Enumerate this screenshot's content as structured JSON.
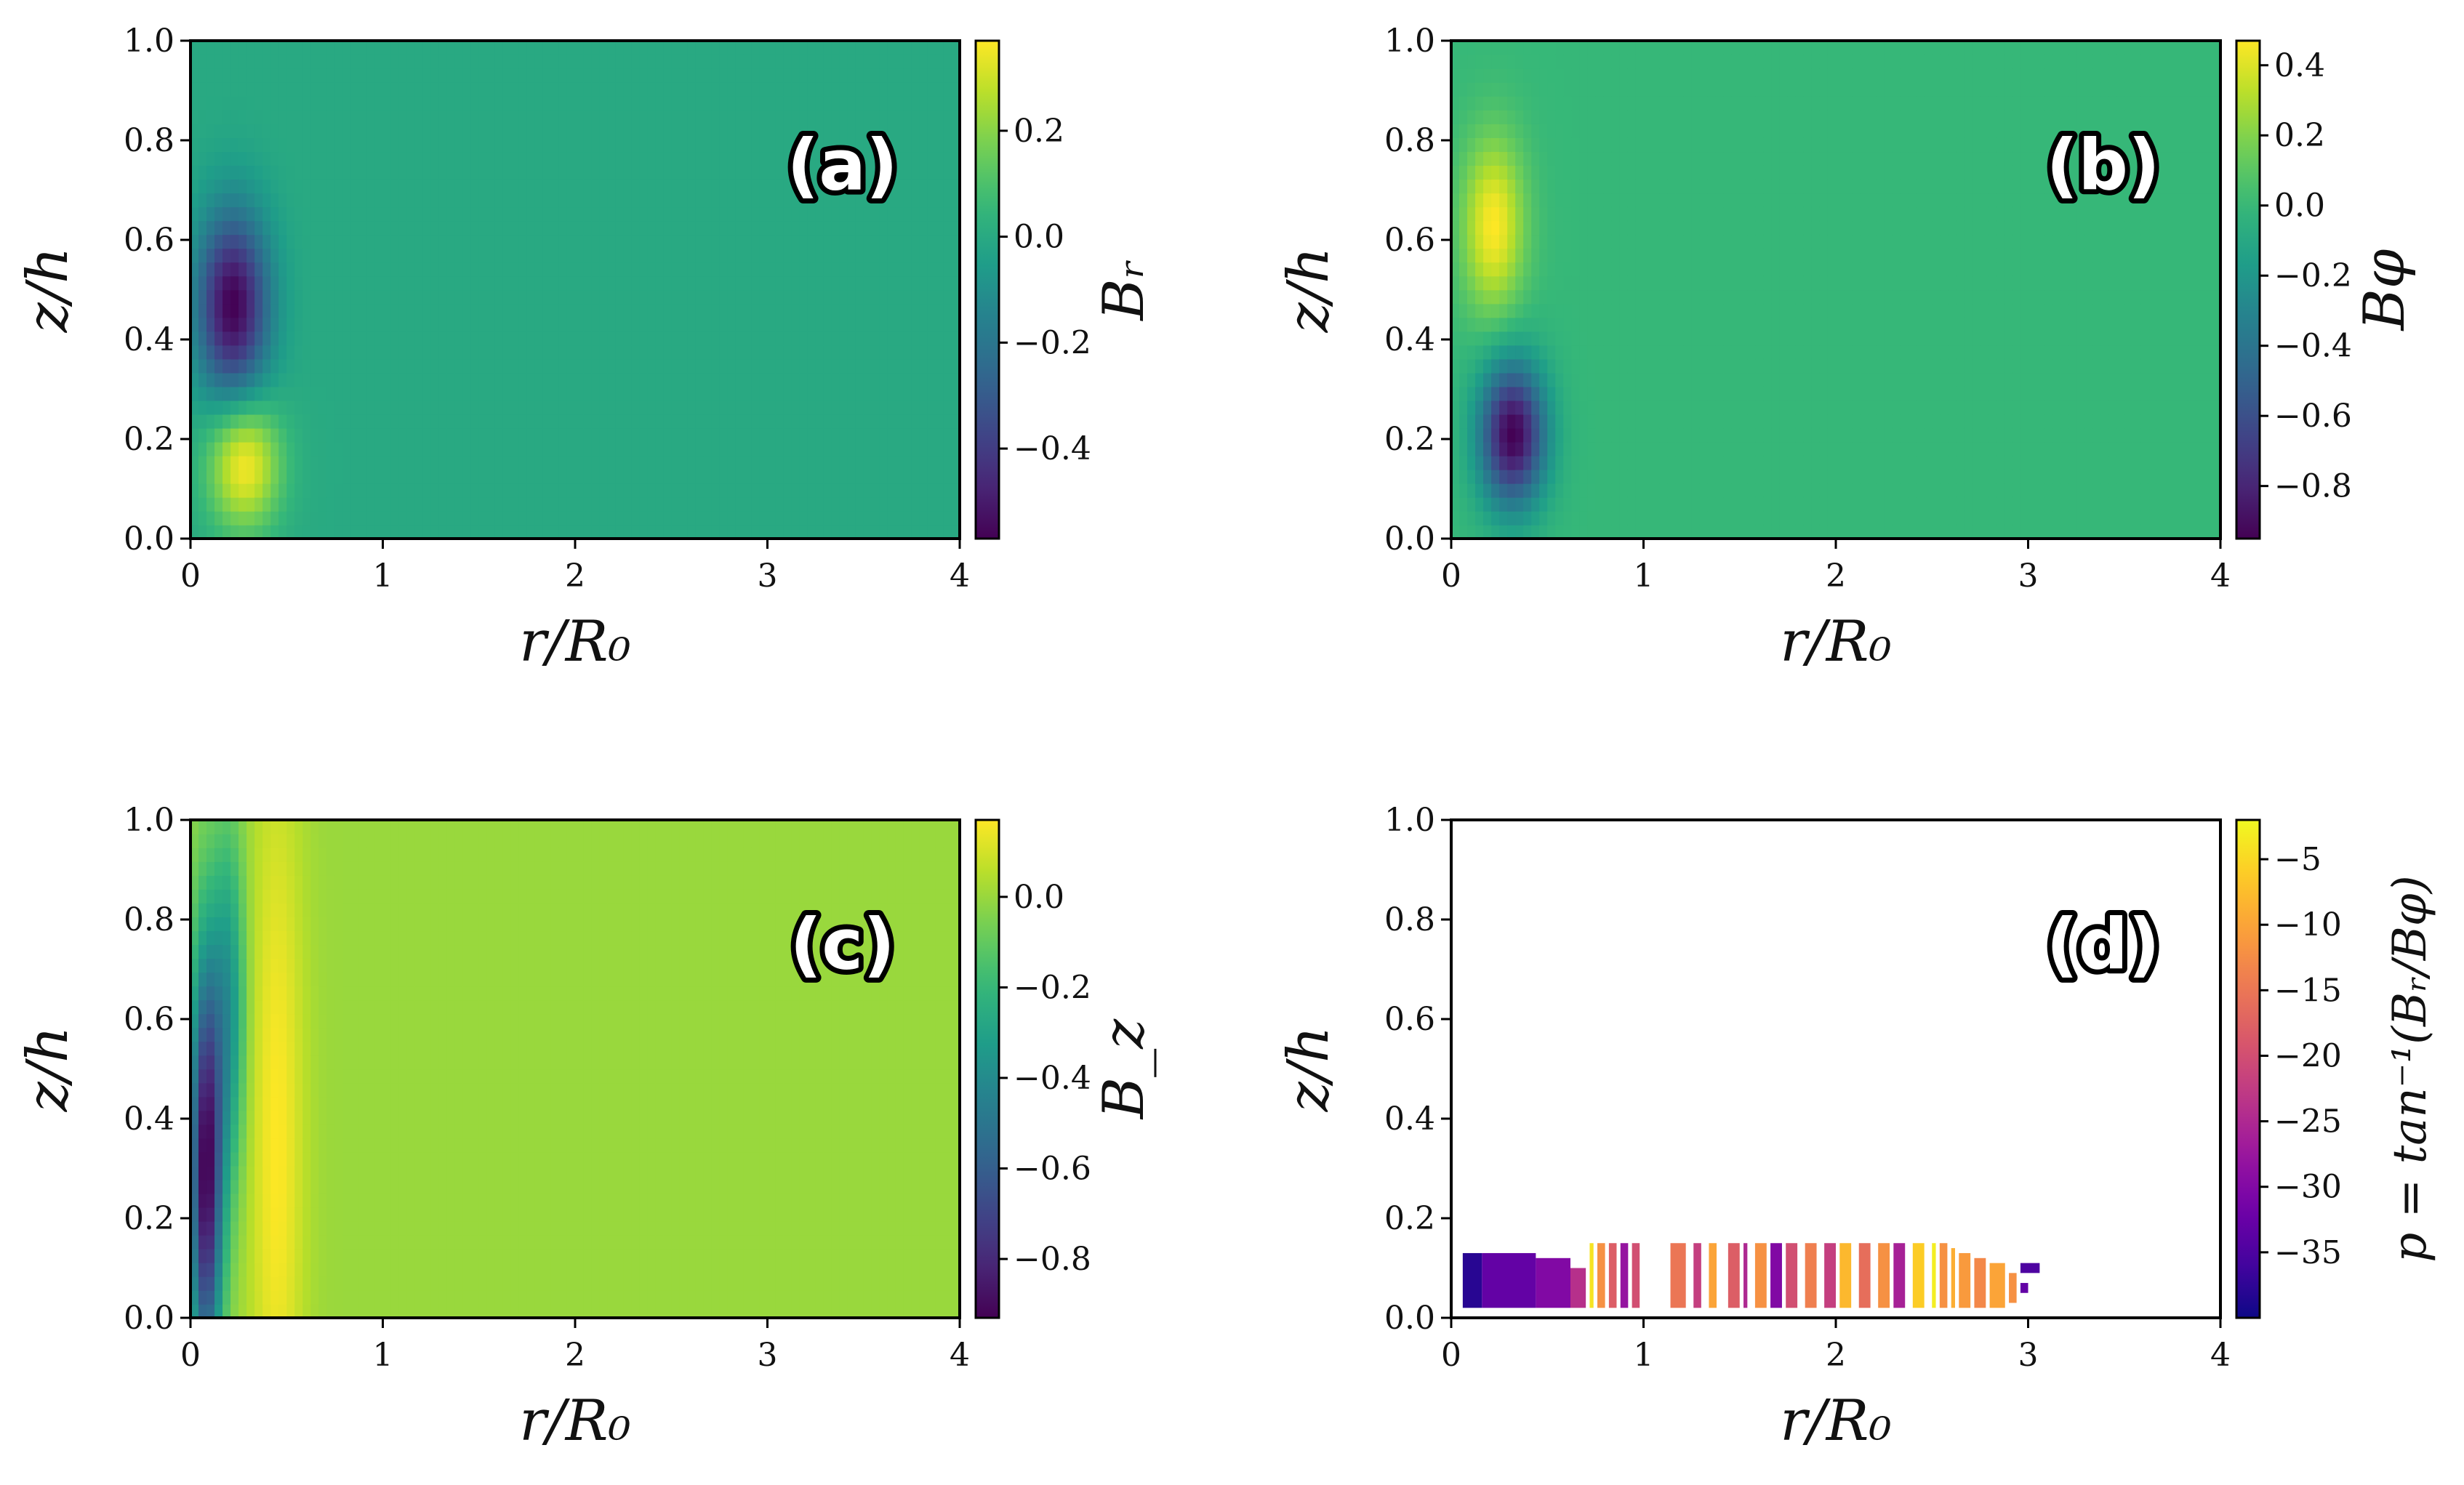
{
  "chart_data": [
    {
      "id": "a",
      "type": "heatmap",
      "panel_label": "(a)",
      "xlabel": "r/R₀",
      "ylabel": "z/h",
      "xlim": [
        0,
        4
      ],
      "ylim": [
        0,
        1
      ],
      "xticks": [
        0,
        1,
        2,
        3,
        4
      ],
      "xtick_labels": [
        "0",
        "1",
        "2",
        "3",
        "4"
      ],
      "yticks": [
        0,
        0.2,
        0.4,
        0.6,
        0.8,
        1.0
      ],
      "ytick_labels": [
        "0.0",
        "0.2",
        "0.4",
        "0.6",
        "0.8",
        "1.0"
      ],
      "colormap": "viridis",
      "colorbar": {
        "label": "Bᵣ",
        "vmin": -0.57,
        "vmax": 0.37,
        "ticks": [
          -0.4,
          -0.2,
          0.0,
          0.2
        ],
        "tick_labels": [
          "−0.4",
          "−0.2",
          "0.0",
          "0.2"
        ]
      },
      "background_value": 0.0,
      "features": [
        {
          "kind": "gaussian",
          "r": 0.22,
          "z": 0.47,
          "amp": -0.57,
          "sr": 0.13,
          "sz": 0.13
        },
        {
          "kind": "gaussian",
          "r": 0.28,
          "z": 0.15,
          "amp": 0.37,
          "sr": 0.13,
          "sz": 0.09
        }
      ]
    },
    {
      "id": "b",
      "type": "heatmap",
      "panel_label": "(b)",
      "xlabel": "r/R₀",
      "ylabel": "z/h",
      "xlim": [
        0,
        4
      ],
      "ylim": [
        0,
        1
      ],
      "xticks": [
        0,
        1,
        2,
        3,
        4
      ],
      "xtick_labels": [
        "0",
        "1",
        "2",
        "3",
        "4"
      ],
      "yticks": [
        0,
        0.2,
        0.4,
        0.6,
        0.8,
        1.0
      ],
      "ytick_labels": [
        "0.0",
        "0.2",
        "0.4",
        "0.6",
        "0.8",
        "1.0"
      ],
      "colormap": "viridis",
      "colorbar": {
        "label": "Bφ",
        "vmin": -0.95,
        "vmax": 0.47,
        "ticks": [
          -0.8,
          -0.6,
          -0.4,
          -0.2,
          0.0,
          0.2,
          0.4
        ],
        "tick_labels": [
          "−0.8",
          "−0.6",
          "−0.4",
          "−0.2",
          "0.0",
          "0.2",
          "0.4"
        ]
      },
      "background_value": 0.0,
      "features": [
        {
          "kind": "gaussian",
          "r": 0.22,
          "z": 0.63,
          "amp": 0.47,
          "sr": 0.11,
          "sz": 0.12
        },
        {
          "kind": "gaussian",
          "r": 0.32,
          "z": 0.21,
          "amp": -0.95,
          "sr": 0.12,
          "sz": 0.1
        }
      ]
    },
    {
      "id": "c",
      "type": "heatmap",
      "panel_label": "(c)",
      "xlabel": "r/R₀",
      "ylabel": "z/h",
      "xlim": [
        0,
        4
      ],
      "ylim": [
        0,
        1
      ],
      "xticks": [
        0,
        1,
        2,
        3,
        4
      ],
      "xtick_labels": [
        "0",
        "1",
        "2",
        "3",
        "4"
      ],
      "yticks": [
        0,
        0.2,
        0.4,
        0.6,
        0.8,
        1.0
      ],
      "ytick_labels": [
        "0.0",
        "0.2",
        "0.4",
        "0.6",
        "0.8",
        "1.0"
      ],
      "colormap": "viridis",
      "colorbar": {
        "label": "B_z",
        "vmin": -0.93,
        "vmax": 0.17,
        "ticks": [
          -0.8,
          -0.6,
          -0.4,
          -0.2,
          0.0
        ],
        "tick_labels": [
          "−0.8",
          "−0.6",
          "−0.4",
          "−0.2",
          "0.0"
        ]
      },
      "background_value": 0.0,
      "features": [
        {
          "kind": "gaussian",
          "r": 0.08,
          "z": 0.3,
          "amp": -0.93,
          "sr": 0.06,
          "sz": 0.3
        },
        {
          "kind": "gaussian",
          "r": 0.45,
          "z": 0.35,
          "amp": 0.17,
          "sr": 0.1,
          "sz": 0.55
        },
        {
          "kind": "gaussian",
          "r": 0.2,
          "z": 0.62,
          "amp": -0.35,
          "sr": 0.06,
          "sz": 0.25
        }
      ]
    },
    {
      "id": "d",
      "type": "heatmap",
      "panel_label": "(d)",
      "xlabel": "r/R₀",
      "ylabel": "z/h",
      "xlim": [
        0,
        4
      ],
      "ylim": [
        0,
        1
      ],
      "xticks": [
        0,
        1,
        2,
        3,
        4
      ],
      "xtick_labels": [
        "0",
        "1",
        "2",
        "3",
        "4"
      ],
      "yticks": [
        0,
        0.2,
        0.4,
        0.6,
        0.8,
        1.0
      ],
      "ytick_labels": [
        "0.0",
        "0.2",
        "0.4",
        "0.6",
        "0.8",
        "1.0"
      ],
      "colormap": "plasma",
      "colorbar": {
        "label": "p = tan⁻¹(Bᵣ/Bφ)",
        "vmin": -40,
        "vmax": -2,
        "ticks": [
          -35,
          -30,
          -25,
          -20,
          -15,
          -10,
          -5
        ],
        "tick_labels": [
          "−35",
          "−30",
          "−25",
          "−20",
          "−15",
          "−10",
          "−5"
        ]
      },
      "background_value": null,
      "strips": [
        {
          "r0": 0.06,
          "r1": 0.16,
          "z0": 0.02,
          "z1": 0.13,
          "v": -38
        },
        {
          "r0": 0.16,
          "r1": 0.44,
          "z0": 0.02,
          "z1": 0.13,
          "v": -33
        },
        {
          "r0": 0.44,
          "r1": 0.62,
          "z0": 0.02,
          "z1": 0.12,
          "v": -30
        },
        {
          "r0": 0.62,
          "r1": 0.7,
          "z0": 0.02,
          "z1": 0.1,
          "v": -24
        },
        {
          "r0": 0.72,
          "r1": 0.74,
          "z0": 0.02,
          "z1": 0.15,
          "v": -4
        },
        {
          "r0": 0.76,
          "r1": 0.8,
          "z0": 0.02,
          "z1": 0.15,
          "v": -12
        },
        {
          "r0": 0.82,
          "r1": 0.86,
          "z0": 0.02,
          "z1": 0.15,
          "v": -18
        },
        {
          "r0": 0.88,
          "r1": 0.92,
          "z0": 0.02,
          "z1": 0.15,
          "v": -28
        },
        {
          "r0": 0.94,
          "r1": 0.98,
          "z0": 0.02,
          "z1": 0.15,
          "v": -20
        },
        {
          "r0": 1.14,
          "r1": 1.22,
          "z0": 0.02,
          "z1": 0.15,
          "v": -15
        },
        {
          "r0": 1.26,
          "r1": 1.3,
          "z0": 0.02,
          "z1": 0.15,
          "v": -22
        },
        {
          "r0": 1.34,
          "r1": 1.38,
          "z0": 0.02,
          "z1": 0.15,
          "v": -10
        },
        {
          "r0": 1.44,
          "r1": 1.5,
          "z0": 0.02,
          "z1": 0.15,
          "v": -18
        },
        {
          "r0": 1.52,
          "r1": 1.54,
          "z0": 0.02,
          "z1": 0.15,
          "v": -25
        },
        {
          "r0": 1.58,
          "r1": 1.64,
          "z0": 0.02,
          "z1": 0.15,
          "v": -12
        },
        {
          "r0": 1.66,
          "r1": 1.72,
          "z0": 0.02,
          "z1": 0.15,
          "v": -30
        },
        {
          "r0": 1.74,
          "r1": 1.8,
          "z0": 0.02,
          "z1": 0.15,
          "v": -20
        },
        {
          "r0": 1.84,
          "r1": 1.9,
          "z0": 0.02,
          "z1": 0.15,
          "v": -14
        },
        {
          "r0": 1.94,
          "r1": 2.0,
          "z0": 0.02,
          "z1": 0.15,
          "v": -22
        },
        {
          "r0": 2.02,
          "r1": 2.08,
          "z0": 0.02,
          "z1": 0.15,
          "v": -8
        },
        {
          "r0": 2.12,
          "r1": 2.18,
          "z0": 0.02,
          "z1": 0.15,
          "v": -16
        },
        {
          "r0": 2.22,
          "r1": 2.28,
          "z0": 0.02,
          "z1": 0.15,
          "v": -12
        },
        {
          "r0": 2.3,
          "r1": 2.36,
          "z0": 0.02,
          "z1": 0.15,
          "v": -26
        },
        {
          "r0": 2.4,
          "r1": 2.46,
          "z0": 0.02,
          "z1": 0.15,
          "v": -6
        },
        {
          "r0": 2.5,
          "r1": 2.52,
          "z0": 0.02,
          "z1": 0.15,
          "v": -3
        },
        {
          "r0": 2.54,
          "r1": 2.58,
          "z0": 0.02,
          "z1": 0.15,
          "v": -12
        },
        {
          "r0": 2.6,
          "r1": 2.62,
          "z0": 0.02,
          "z1": 0.14,
          "v": -9
        },
        {
          "r0": 2.64,
          "r1": 2.7,
          "z0": 0.02,
          "z1": 0.13,
          "v": -11
        },
        {
          "r0": 2.72,
          "r1": 2.78,
          "z0": 0.02,
          "z1": 0.12,
          "v": -13
        },
        {
          "r0": 2.8,
          "r1": 2.88,
          "z0": 0.02,
          "z1": 0.11,
          "v": -10
        },
        {
          "r0": 2.9,
          "r1": 2.94,
          "z0": 0.03,
          "z1": 0.09,
          "v": -12
        },
        {
          "r0": 2.96,
          "r1": 3.06,
          "z0": 0.09,
          "z1": 0.11,
          "v": -35
        },
        {
          "r0": 2.96,
          "r1": 3.0,
          "z0": 0.05,
          "z1": 0.07,
          "v": -33
        }
      ]
    }
  ]
}
